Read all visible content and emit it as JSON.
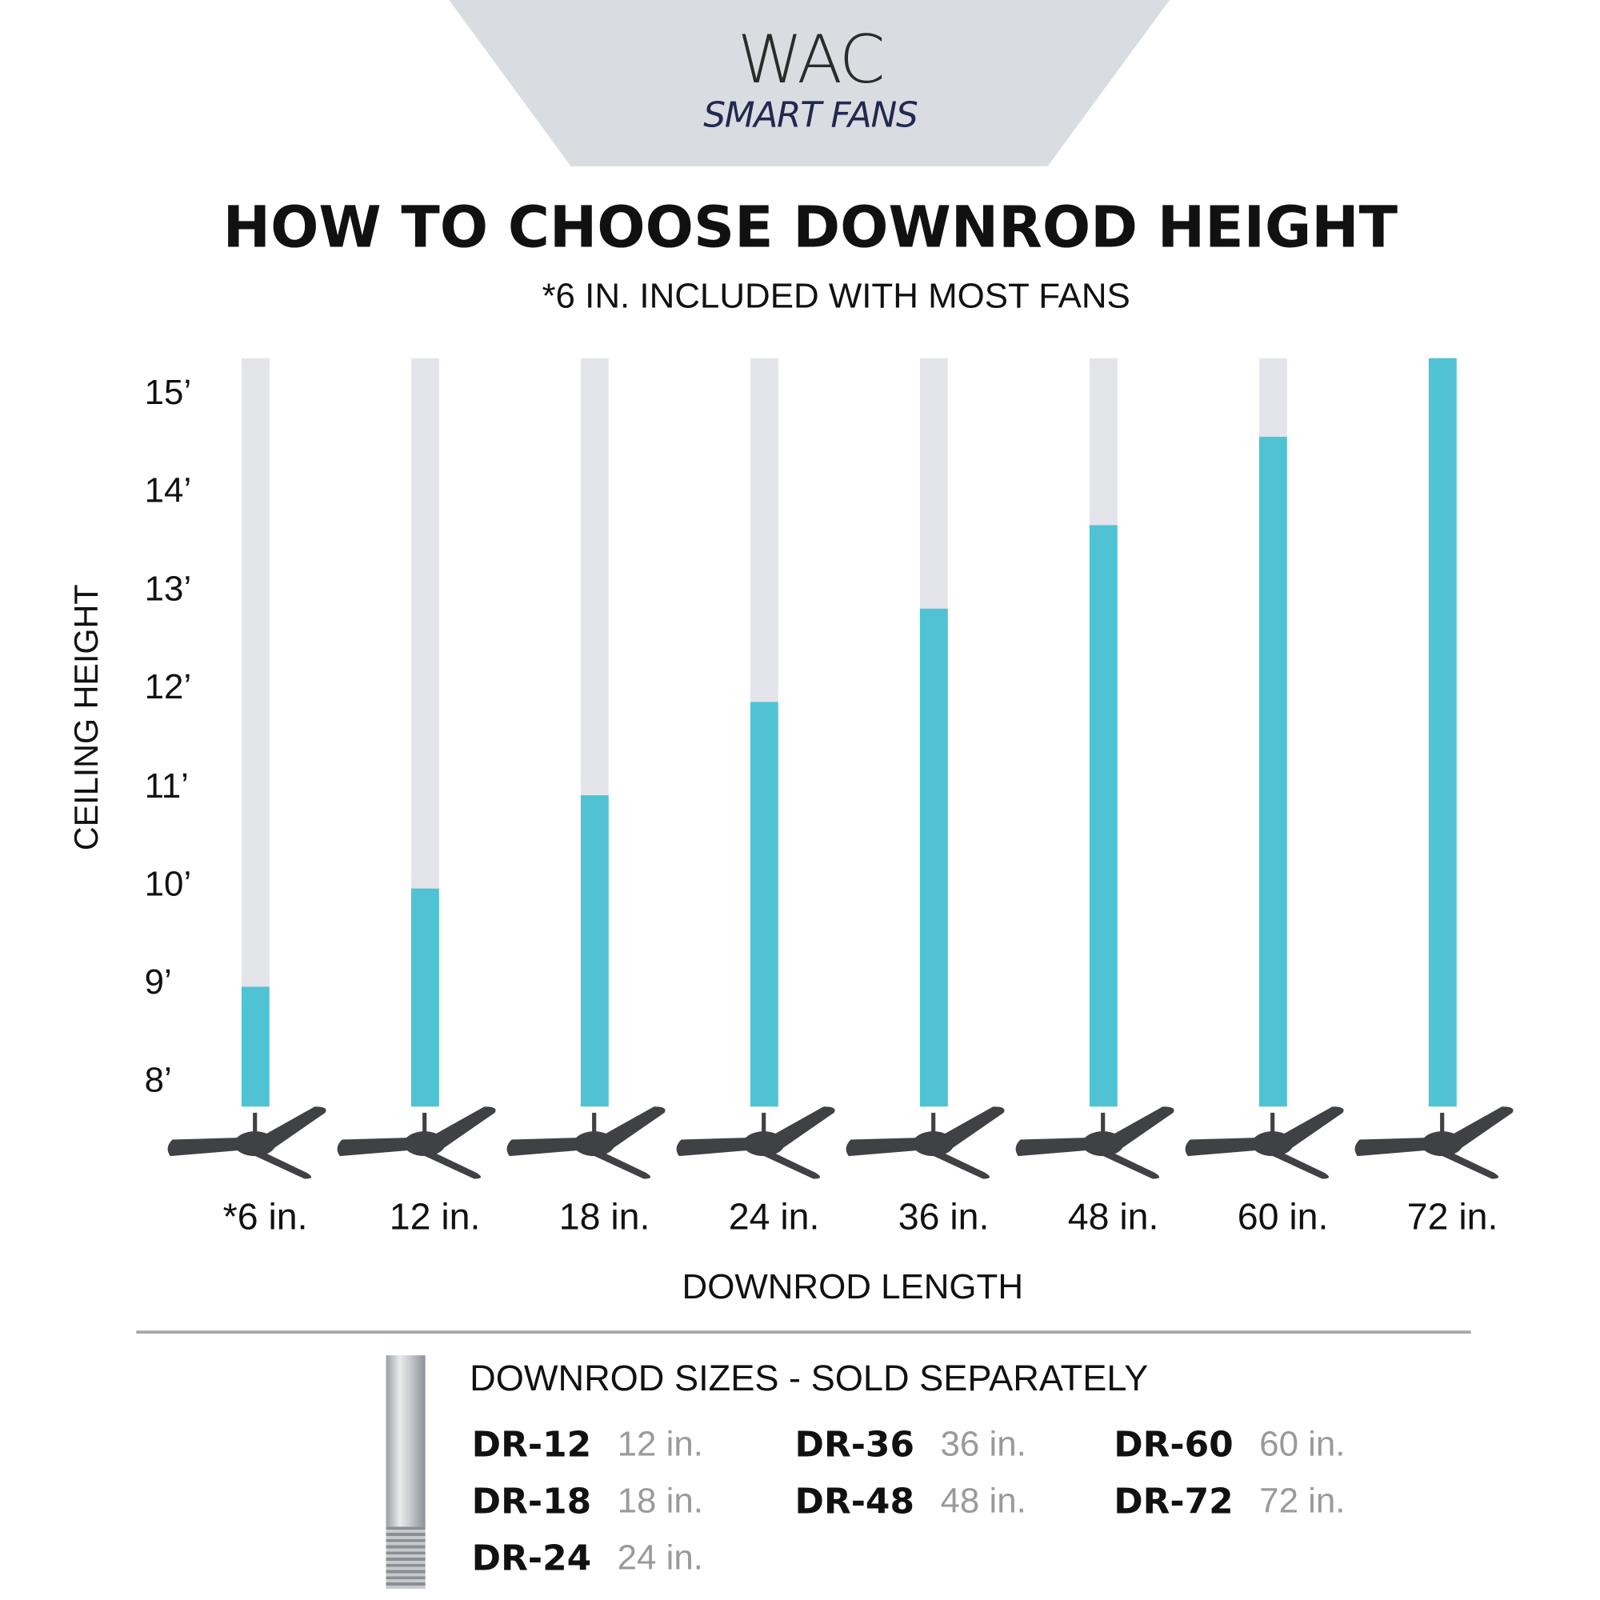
{
  "logo": {
    "brand": "WAC",
    "subbrand": "SMART FANS",
    "banner_color": "#d9dce1"
  },
  "header": {
    "title": "HOW TO CHOOSE DOWNROD HEIGHT",
    "subtitle": "*6 IN. INCLUDED WITH MOST FANS"
  },
  "chart_data": {
    "type": "bar",
    "categories": [
      "*6 in.",
      "12 in.",
      "18 in.",
      "24 in.",
      "36 in.",
      "48 in.",
      "60 in.",
      "72 in."
    ],
    "values": [
      9,
      10,
      10.95,
      11.9,
      12.85,
      13.7,
      14.6,
      15.4
    ],
    "xlabel": "DOWNROD LENGTH",
    "ylabel": "CEILING HEIGHT",
    "yticks": [
      "8’",
      "9’",
      "10’",
      "11’",
      "12’",
      "13’",
      "14’",
      "15’"
    ],
    "ytick_values": [
      8,
      9,
      10,
      11,
      12,
      13,
      14,
      15
    ],
    "ylim": [
      7.78,
      15.4
    ],
    "bar_color": "#4fc3d3",
    "track_color": "#e4e5eb",
    "fan_icon_color": "#3f4145",
    "grid": false
  },
  "sizes": {
    "title": "DOWNROD SIZES - SOLD SEPARATELY",
    "items": [
      {
        "code": "DR-12",
        "length": "12 in."
      },
      {
        "code": "DR-18",
        "length": "18 in."
      },
      {
        "code": "DR-24",
        "length": "24 in."
      },
      {
        "code": "DR-36",
        "length": "36 in."
      },
      {
        "code": "DR-48",
        "length": "48 in."
      },
      {
        "code": "DR-60",
        "length": "60 in."
      },
      {
        "code": "DR-72",
        "length": "72 in."
      }
    ]
  }
}
